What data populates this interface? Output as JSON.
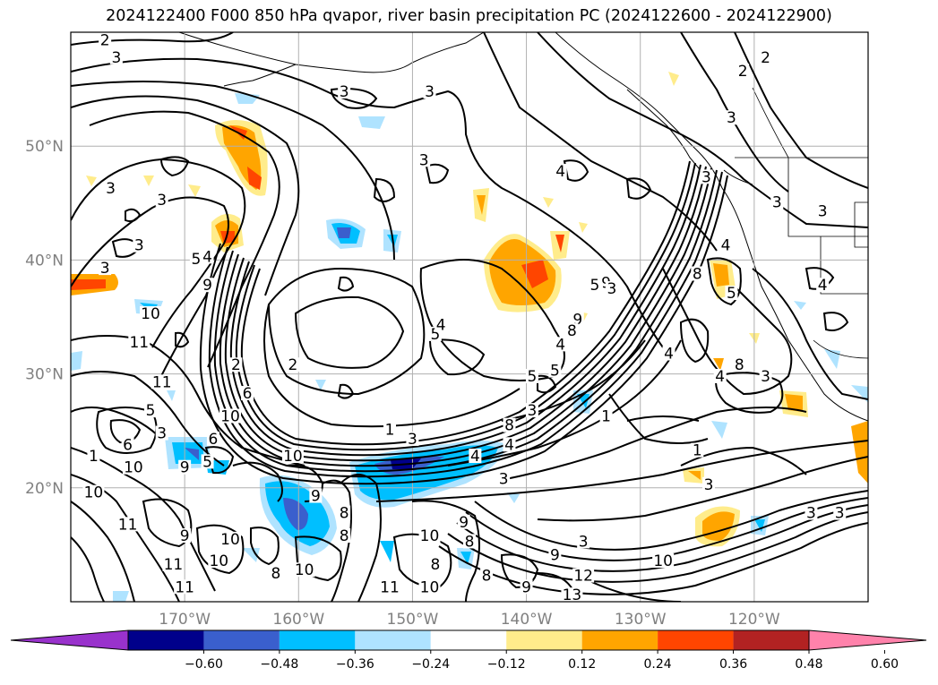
{
  "title": "2024122400 F000 850 hPa qvapor, river basin precipitation PC (2024122600 - 2024122900)",
  "map": {
    "lon_range": [
      -180,
      -110
    ],
    "lat_range": [
      10,
      60
    ],
    "lat_ticks": [
      {
        "value": 50,
        "label": "50°N"
      },
      {
        "value": 40,
        "label": "40°N"
      },
      {
        "value": 30,
        "label": "30°N"
      },
      {
        "value": 20,
        "label": "20°N"
      }
    ],
    "lon_ticks": [
      {
        "value": -170,
        "label": "170°W"
      },
      {
        "value": -160,
        "label": "160°W"
      },
      {
        "value": -150,
        "label": "150°W"
      },
      {
        "value": -140,
        "label": "140°W"
      },
      {
        "value": -130,
        "label": "130°W"
      },
      {
        "value": -120,
        "label": "120°W"
      }
    ],
    "gridlines": true,
    "contour_labels": [
      {
        "text": "2",
        "lon": -177,
        "lat": 59
      },
      {
        "text": "3",
        "lon": -176,
        "lat": 57.5
      },
      {
        "text": "3",
        "lon": -156,
        "lat": 54.5
      },
      {
        "text": "3",
        "lon": -148.5,
        "lat": 54.5
      },
      {
        "text": "2",
        "lon": -119,
        "lat": 57.5
      },
      {
        "text": "2",
        "lon": -121,
        "lat": 56.3
      },
      {
        "text": "3",
        "lon": -122,
        "lat": 52.2
      },
      {
        "text": "3",
        "lon": -149,
        "lat": 48.5
      },
      {
        "text": "4",
        "lon": -137,
        "lat": 47.5
      },
      {
        "text": "3",
        "lon": -176.5,
        "lat": 46
      },
      {
        "text": "3",
        "lon": -177,
        "lat": 39
      },
      {
        "text": "3",
        "lon": -172,
        "lat": 45
      },
      {
        "text": "3",
        "lon": -174,
        "lat": 41
      },
      {
        "text": "3",
        "lon": -118,
        "lat": 44.8
      },
      {
        "text": "3",
        "lon": -114,
        "lat": 44
      },
      {
        "text": "5",
        "lon": -169,
        "lat": 39.8
      },
      {
        "text": "4",
        "lon": -168,
        "lat": 40
      },
      {
        "text": "9",
        "lon": -168,
        "lat": 37.5
      },
      {
        "text": "10",
        "lon": -173,
        "lat": 35
      },
      {
        "text": "11",
        "lon": -174,
        "lat": 32.5
      },
      {
        "text": "11",
        "lon": -172,
        "lat": 29
      },
      {
        "text": "6",
        "lon": -164.5,
        "lat": 28
      },
      {
        "text": "10",
        "lon": -166,
        "lat": 26
      },
      {
        "text": "5",
        "lon": -173,
        "lat": 26.5
      },
      {
        "text": "3",
        "lon": -172,
        "lat": 24.5
      },
      {
        "text": "6",
        "lon": -167.5,
        "lat": 24
      },
      {
        "text": "6",
        "lon": -175,
        "lat": 23.5
      },
      {
        "text": "5",
        "lon": -168,
        "lat": 22
      },
      {
        "text": "10",
        "lon": -174.5,
        "lat": 21.5
      },
      {
        "text": "9",
        "lon": -170,
        "lat": 21.5
      },
      {
        "text": "10",
        "lon": -160.5,
        "lat": 22.5
      },
      {
        "text": "1",
        "lon": -178,
        "lat": 22.5
      },
      {
        "text": "10",
        "lon": -178,
        "lat": 19.3
      },
      {
        "text": "11",
        "lon": -175,
        "lat": 16.5
      },
      {
        "text": "9",
        "lon": -170,
        "lat": 15.5
      },
      {
        "text": "10",
        "lon": -166,
        "lat": 15.2
      },
      {
        "text": "10",
        "lon": -167,
        "lat": 13.3
      },
      {
        "text": "11",
        "lon": -171,
        "lat": 13
      },
      {
        "text": "11",
        "lon": -170,
        "lat": 11
      },
      {
        "text": "9",
        "lon": -158.5,
        "lat": 19
      },
      {
        "text": "8",
        "lon": -156,
        "lat": 17.5
      },
      {
        "text": "8",
        "lon": -156,
        "lat": 15.5
      },
      {
        "text": "8",
        "lon": -162,
        "lat": 12.2
      },
      {
        "text": "10",
        "lon": -159.5,
        "lat": 12.5
      },
      {
        "text": "8",
        "lon": -143.5,
        "lat": 12
      },
      {
        "text": "8",
        "lon": -148,
        "lat": 13
      },
      {
        "text": "10",
        "lon": -148.5,
        "lat": 15.5
      },
      {
        "text": "8",
        "lon": -145,
        "lat": 15
      },
      {
        "text": "11",
        "lon": -152,
        "lat": 11
      },
      {
        "text": "10",
        "lon": -148.5,
        "lat": 11
      },
      {
        "text": "9",
        "lon": -145.5,
        "lat": 16.7
      },
      {
        "text": "9",
        "lon": -140,
        "lat": 11
      },
      {
        "text": "3",
        "lon": -142,
        "lat": 20.5
      },
      {
        "text": "5",
        "lon": -139.5,
        "lat": 29.5
      },
      {
        "text": "5",
        "lon": -137.5,
        "lat": 30
      },
      {
        "text": "4",
        "lon": -137,
        "lat": 32.3
      },
      {
        "text": "5",
        "lon": -134,
        "lat": 37.5
      },
      {
        "text": "9",
        "lon": -133,
        "lat": 37.7
      },
      {
        "text": "5",
        "lon": -148,
        "lat": 33.2
      },
      {
        "text": "2",
        "lon": -165.5,
        "lat": 30.5
      },
      {
        "text": "2",
        "lon": -160.5,
        "lat": 30.5
      },
      {
        "text": "4",
        "lon": -147.5,
        "lat": 34
      },
      {
        "text": "1",
        "lon": -152,
        "lat": 24.8
      },
      {
        "text": "3",
        "lon": -150,
        "lat": 24
      },
      {
        "text": "3",
        "lon": -139.5,
        "lat": 26.5
      },
      {
        "text": "4",
        "lon": -141.5,
        "lat": 23.5
      },
      {
        "text": "4",
        "lon": -144.5,
        "lat": 22.5
      },
      {
        "text": "8",
        "lon": -141.5,
        "lat": 25.2
      },
      {
        "text": "9",
        "lon": -135.5,
        "lat": 34.5
      },
      {
        "text": "8",
        "lon": -136,
        "lat": 33.5
      },
      {
        "text": "4",
        "lon": -123,
        "lat": 29.5
      },
      {
        "text": "3",
        "lon": -119,
        "lat": 29.5
      },
      {
        "text": "1",
        "lon": -133,
        "lat": 26
      },
      {
        "text": "1",
        "lon": -125,
        "lat": 23
      },
      {
        "text": "3",
        "lon": -124,
        "lat": 20
      },
      {
        "text": "3",
        "lon": -115,
        "lat": 17.5
      },
      {
        "text": "3",
        "lon": -112.5,
        "lat": 17.5
      },
      {
        "text": "3",
        "lon": -135,
        "lat": 15
      },
      {
        "text": "9",
        "lon": -137.5,
        "lat": 13.8
      },
      {
        "text": "10",
        "lon": -128,
        "lat": 13.3
      },
      {
        "text": "12",
        "lon": -135,
        "lat": 12
      },
      {
        "text": "13",
        "lon": -136,
        "lat": 10.3
      },
      {
        "text": "4",
        "lon": -122.5,
        "lat": 41
      },
      {
        "text": "8",
        "lon": -125,
        "lat": 38.5
      },
      {
        "text": "5",
        "lon": -122,
        "lat": 36.8
      },
      {
        "text": "8",
        "lon": -121.3,
        "lat": 30.5
      },
      {
        "text": "4",
        "lon": -127.5,
        "lat": 31.5
      },
      {
        "text": "3",
        "lon": -132.5,
        "lat": 37.2
      },
      {
        "text": "4",
        "lon": -114,
        "lat": 37.5
      },
      {
        "text": "3",
        "lon": -124.2,
        "lat": 47
      }
    ]
  },
  "colorbar": {
    "colors": [
      "#9932cc",
      "#00008b",
      "#3a5fcd",
      "#00bfff",
      "#afe3ff",
      "#ffffff",
      "#ffec8b",
      "#ffa500",
      "#ff4500",
      "#b22222",
      "#ff82ab"
    ],
    "tick_labels": [
      "−0.60",
      "−0.48",
      "−0.36",
      "−0.24",
      "−0.12",
      "0.12",
      "0.24",
      "0.36",
      "0.48",
      "0.60"
    ],
    "extend": "both"
  }
}
